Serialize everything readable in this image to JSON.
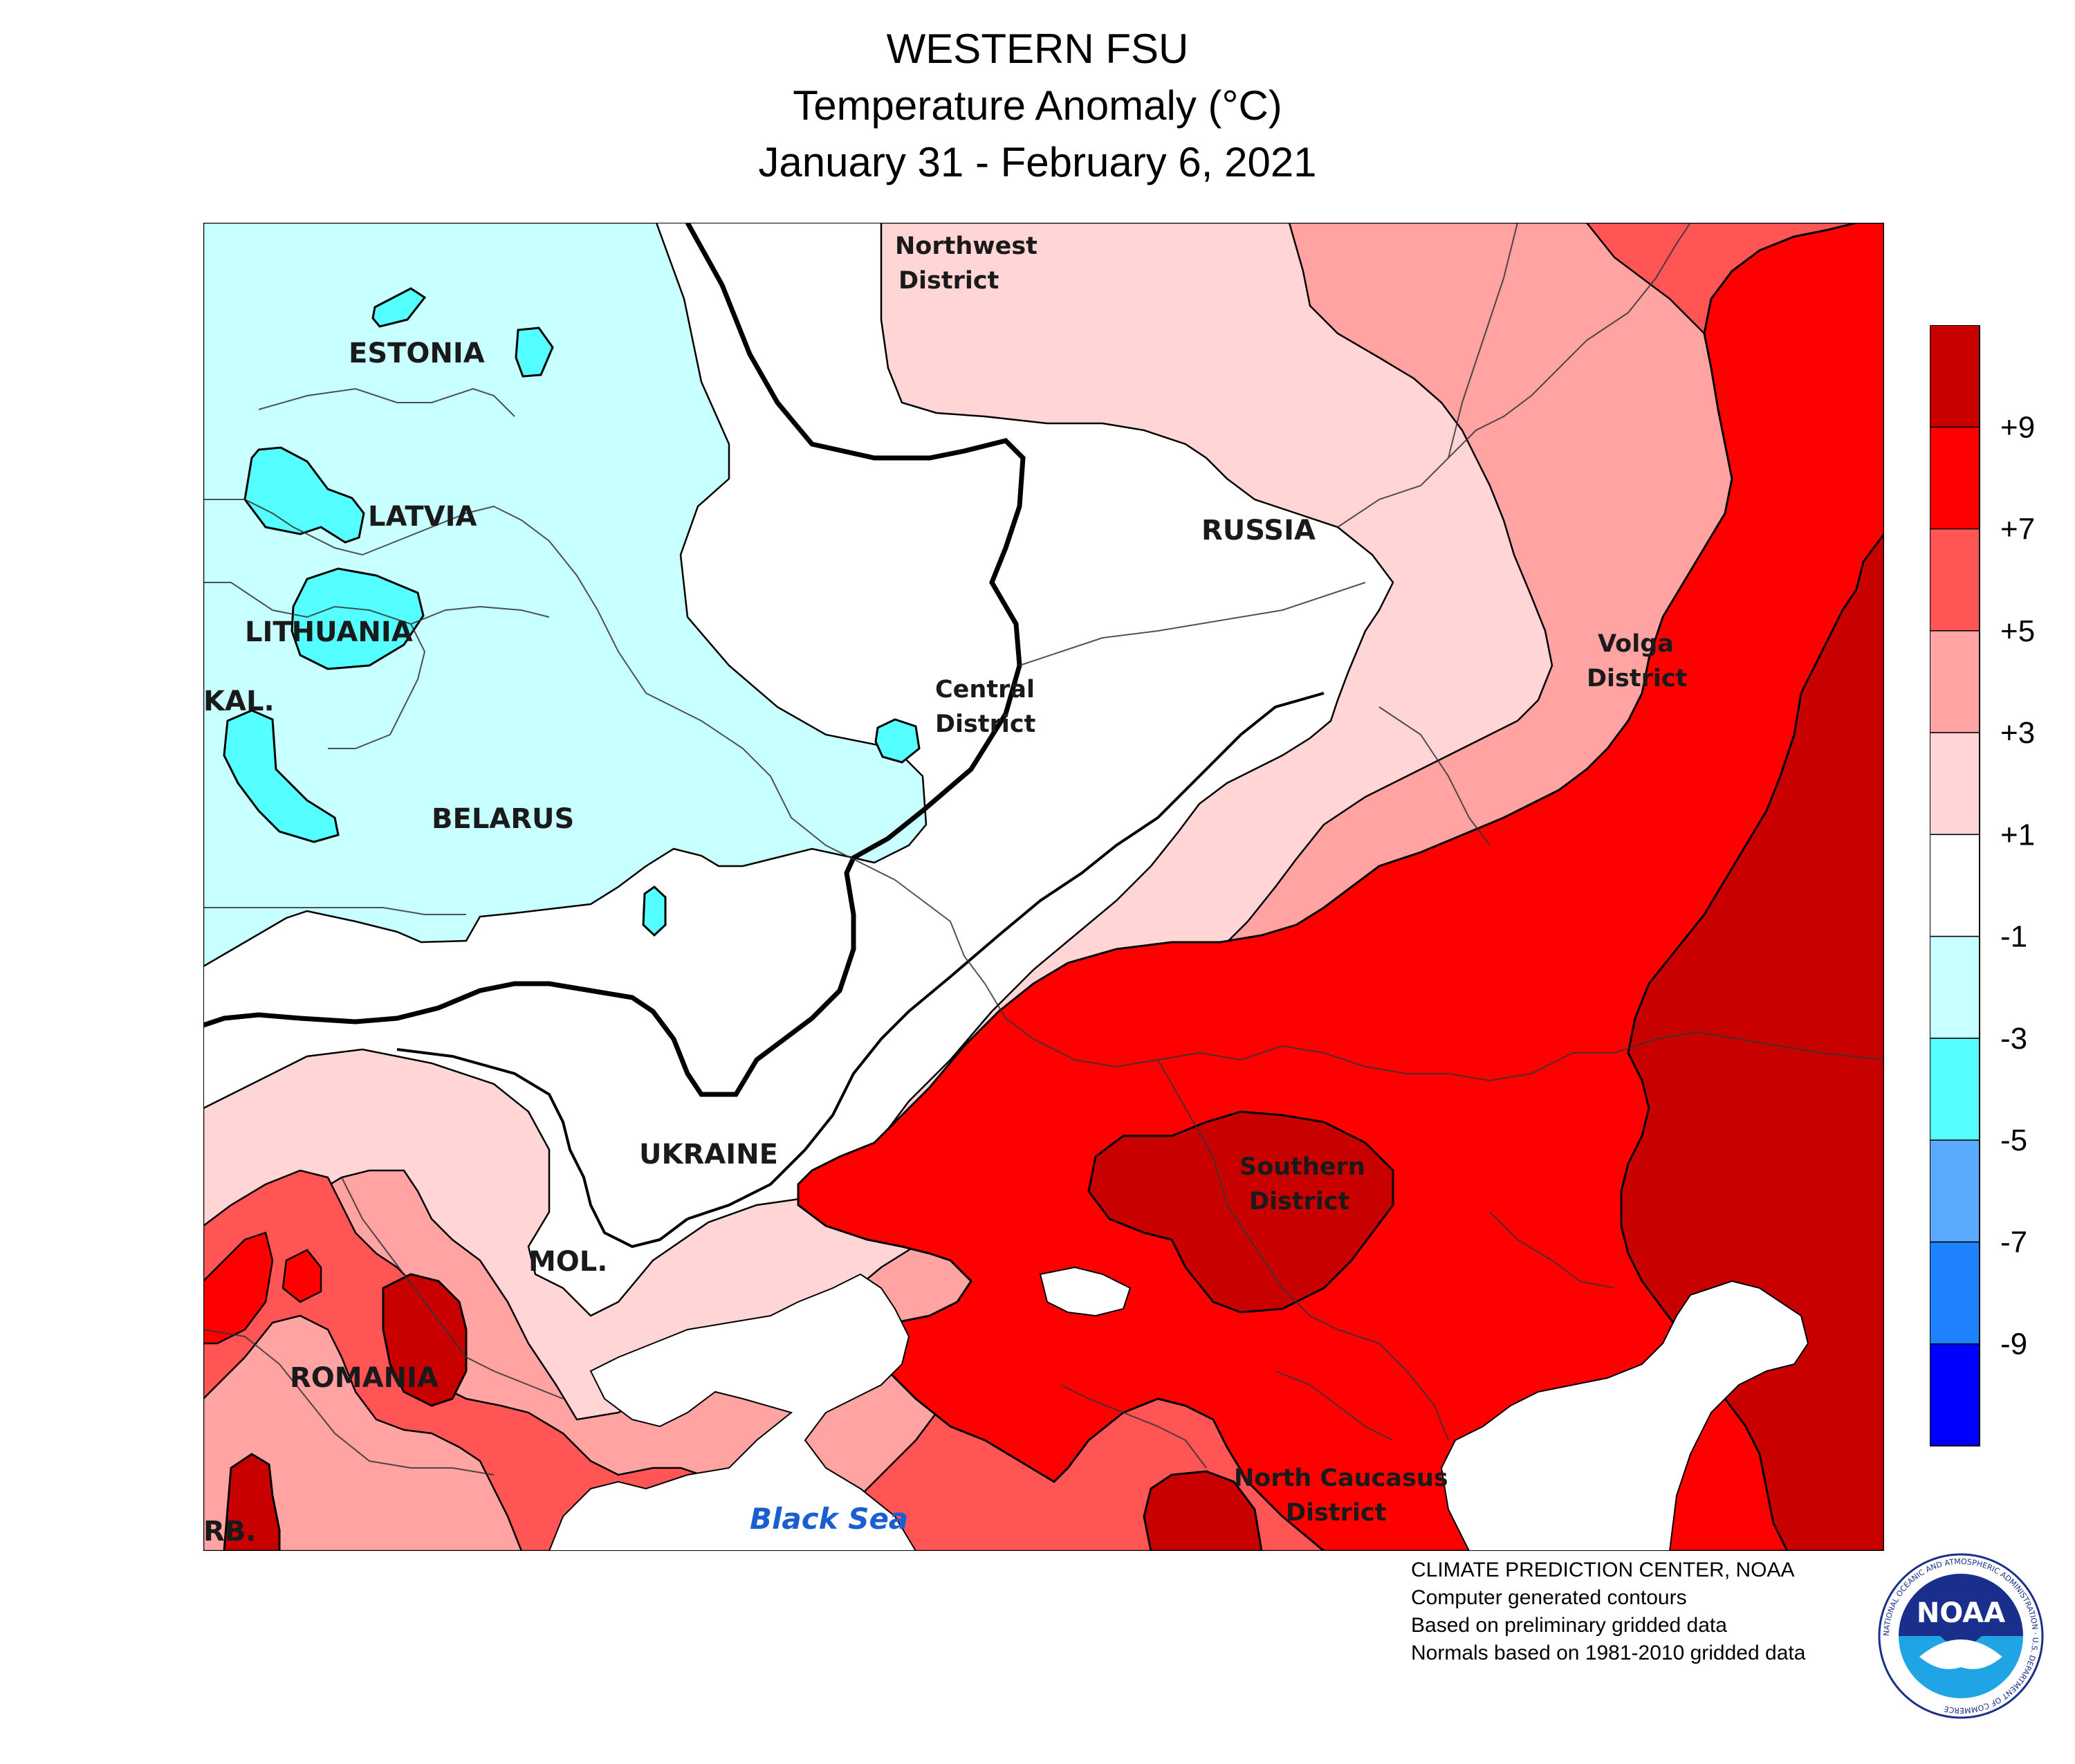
{
  "title": {
    "line1": "WESTERN FSU",
    "line2": "Temperature Anomaly (°C)",
    "line3": "January 31 - February 6, 2021"
  },
  "map": {
    "countries": {
      "estonia": "ESTONIA",
      "latvia": "LATVIA",
      "lithuania": "LITHUANIA",
      "kaliningrad": "KAL.",
      "belarus": "BELARUS",
      "ukraine": "UKRAINE",
      "moldova": "MOL.",
      "romania": "ROMANIA",
      "serbia": "RB.",
      "russia": "RUSSIA"
    },
    "districts": {
      "northwest": [
        "Northwest",
        "District"
      ],
      "central": [
        "Central",
        "District"
      ],
      "volga": [
        "Volga",
        "District"
      ],
      "southern": [
        "Southern",
        "District"
      ],
      "north_caucasus": [
        "North Caucasus",
        "District"
      ]
    },
    "sea": "Black Sea"
  },
  "legend": {
    "labels": [
      "+9",
      "+7",
      "+5",
      "+3",
      "+1",
      "-1",
      "-3",
      "-5",
      "-7",
      "-9"
    ],
    "colors": [
      "#c80000",
      "#ff0000",
      "#ff5555",
      "#ffa3a3",
      "#ffd5d5",
      "#ffffff",
      "#c8ffff",
      "#55ffff",
      "#5aaaff",
      "#1e82ff",
      "#0000ff"
    ]
  },
  "credits": {
    "line1": "CLIMATE PREDICTION CENTER, NOAA",
    "line2": "Computer generated contours",
    "line3": "Based on preliminary gridded data",
    "line4": "Normals based on 1981-2010 gridded data"
  },
  "logo": {
    "text": "NOAA",
    "ring_text": "NATIONAL OCEANIC AND ATMOSPHERIC ADMINISTRATION · U.S. DEPARTMENT OF COMMERCE"
  }
}
